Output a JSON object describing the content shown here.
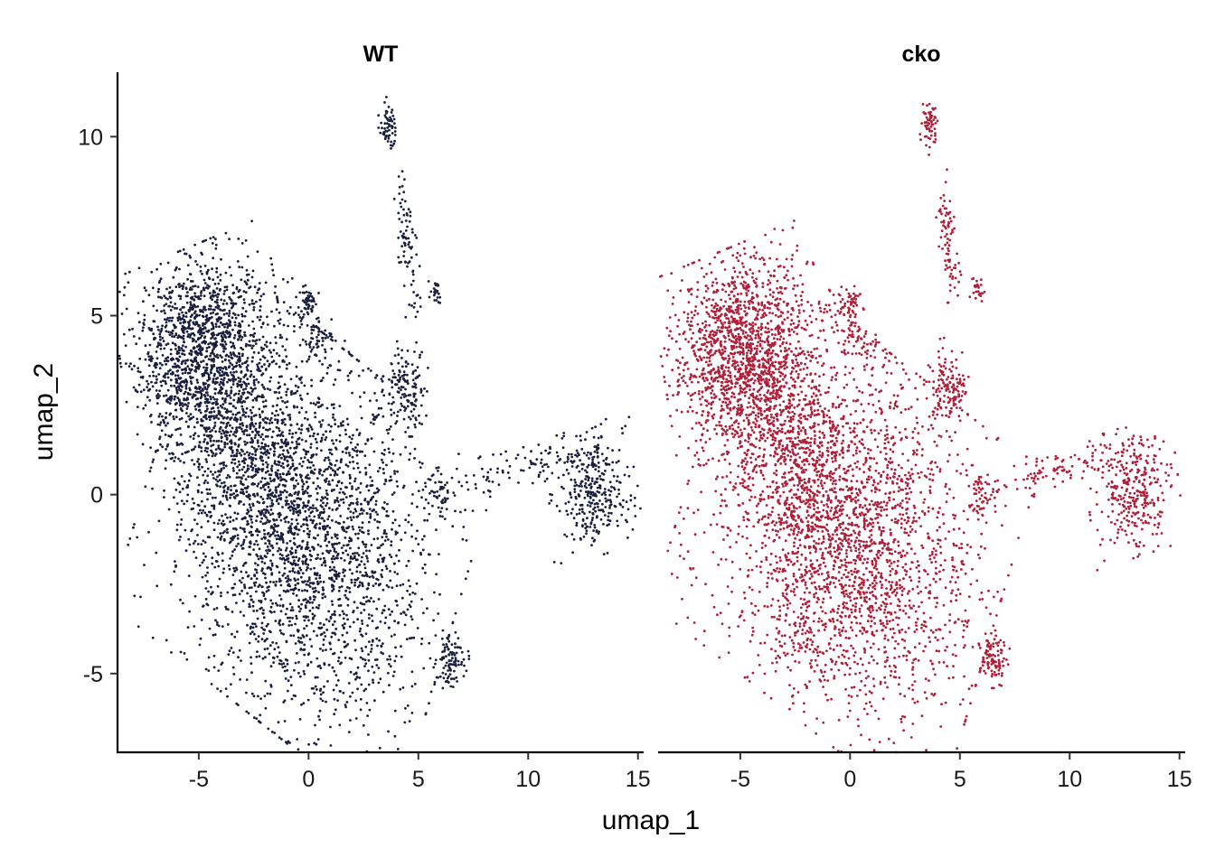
{
  "chart_data": {
    "type": "scatter",
    "xlabel": "umap_1",
    "ylabel": "umap_2",
    "xlim": [
      -8.7,
      15.3
    ],
    "ylim": [
      -7.2,
      11.8
    ],
    "x_ticks": [
      {
        "value": -5,
        "label": "-5"
      },
      {
        "value": 0,
        "label": "0"
      },
      {
        "value": 5,
        "label": "5"
      },
      {
        "value": 10,
        "label": "10"
      },
      {
        "value": 15,
        "label": "15"
      }
    ],
    "y_ticks": [
      {
        "value": -5,
        "label": "-5"
      },
      {
        "value": 0,
        "label": "0"
      },
      {
        "value": 5,
        "label": "5"
      },
      {
        "value": 10,
        "label": "10"
      }
    ],
    "panels": [
      {
        "name": "WT",
        "color": "#1a1f3d"
      },
      {
        "name": "cko",
        "color": "#b01f3a"
      }
    ],
    "clusters": [
      {
        "name": "main-lower",
        "cx": -0.2,
        "cy": -1.2,
        "sx": 3.1,
        "sy": 2.4,
        "rot": -0.45,
        "n": 2600
      },
      {
        "name": "upper-left",
        "cx": -4.9,
        "cy": 4.2,
        "sx": 1.6,
        "sy": 1.2,
        "rot": 0.25,
        "n": 1200
      },
      {
        "name": "mid-left-bridge",
        "cx": -3.2,
        "cy": 1.8,
        "sx": 2.0,
        "sy": 1.2,
        "rot": -0.6,
        "n": 700
      },
      {
        "name": "right-cluster",
        "cx": 12.9,
        "cy": 0.1,
        "sx": 0.9,
        "sy": 0.8,
        "rot": 0.2,
        "n": 320
      },
      {
        "name": "tail-bottom",
        "cx": 6.5,
        "cy": -4.6,
        "sx": 0.35,
        "sy": 0.35,
        "rot": 0.0,
        "n": 90
      },
      {
        "name": "mid-island",
        "cx": 4.4,
        "cy": 3.0,
        "sx": 0.45,
        "sy": 0.6,
        "rot": 0.0,
        "n": 140
      },
      {
        "name": "bridge-right",
        "cx": 9.5,
        "cy": 0.7,
        "sx": 1.6,
        "sy": 0.25,
        "rot": 0.15,
        "n": 90
      },
      {
        "name": "top-spike",
        "cx": 3.6,
        "cy": 10.3,
        "sx": 0.18,
        "sy": 0.35,
        "rot": 0.0,
        "n": 60
      },
      {
        "name": "spike-mid",
        "cx": 4.5,
        "cy": 7.0,
        "sx": 0.2,
        "sy": 0.9,
        "rot": 0.15,
        "n": 80
      },
      {
        "name": "upper-arm",
        "cx": 0.2,
        "cy": 4.5,
        "sx": 0.9,
        "sy": 0.35,
        "rot": -0.6,
        "n": 90
      },
      {
        "name": "small-left-top",
        "cx": 0.0,
        "cy": 5.4,
        "sx": 0.2,
        "sy": 0.2,
        "rot": 0.0,
        "n": 40
      },
      {
        "name": "island-6",
        "cx": 5.8,
        "cy": 5.7,
        "sx": 0.15,
        "sy": 0.15,
        "rot": 0.0,
        "n": 25
      },
      {
        "name": "island-right-mid",
        "cx": 6.0,
        "cy": 0.0,
        "sx": 0.3,
        "sy": 0.35,
        "rot": 0.0,
        "n": 45
      }
    ]
  }
}
